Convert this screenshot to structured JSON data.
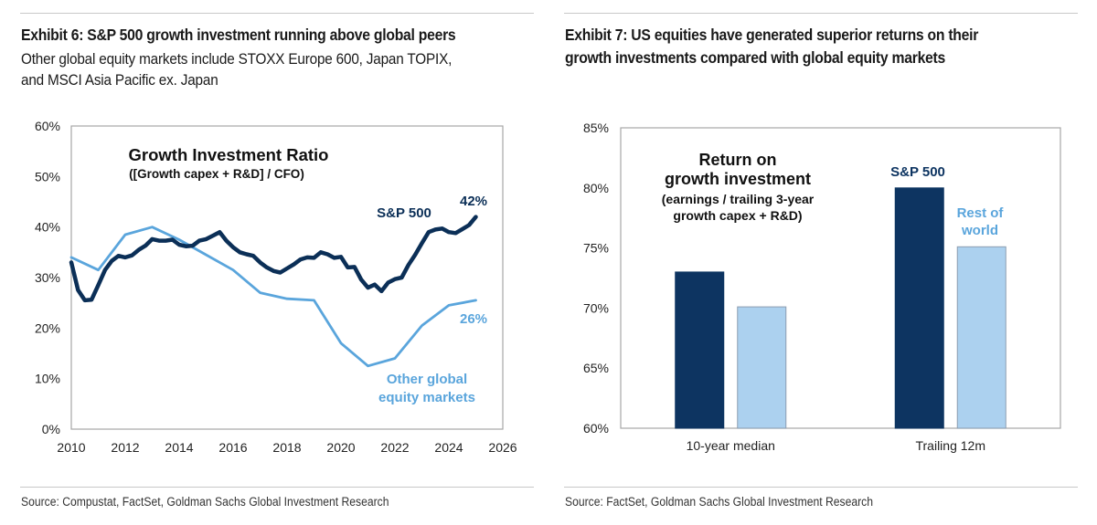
{
  "exhibit6": {
    "title": "Exhibit 6: S&P 500 growth investment running above global peers",
    "subtitle_line1": "Other global equity markets include STOXX Europe 600, Japan TOPIX,",
    "subtitle_line2": "and MSCI Asia Pacific ex. Japan",
    "source": "Source: Compustat, FactSet, Goldman Sachs Global Investment Research"
  },
  "exhibit7": {
    "title_line1": "Exhibit 7: US equities have generated superior returns on their",
    "title_line2": "growth investments compared with global equity markets",
    "source": "Source: FactSet, Goldman Sachs Global Investment Research"
  },
  "colors": {
    "dark_navy": "#0b2f57",
    "light_blue_line": "#5aa5dc",
    "bar_dark": "#0d3461",
    "bar_light": "#acd1ef",
    "axis": "#a6a6a6"
  },
  "chart_data": [
    {
      "type": "line",
      "title": "Growth Investment Ratio",
      "subtitle": "([Growth capex + R&D] / CFO)",
      "xlabel": "",
      "ylabel": "",
      "xlim": [
        2010,
        2026
      ],
      "ylim": [
        0,
        60
      ],
      "xticks": [
        "2010",
        "2012",
        "2014",
        "2016",
        "2018",
        "2020",
        "2022",
        "2024",
        "2026"
      ],
      "yticks": [
        "0%",
        "10%",
        "20%",
        "30%",
        "40%",
        "50%",
        "60%"
      ],
      "grid": false,
      "series": [
        {
          "name": "S&P 500",
          "label": "S&P 500",
          "end_label": "42%",
          "color": "#0b2f57",
          "x": [
            2010.0,
            2010.25,
            2010.5,
            2010.75,
            2011.0,
            2011.25,
            2011.5,
            2011.75,
            2012.0,
            2012.25,
            2012.5,
            2012.75,
            2013.0,
            2013.25,
            2013.5,
            2013.75,
            2014.0,
            2014.25,
            2014.5,
            2014.75,
            2015.0,
            2015.25,
            2015.5,
            2015.75,
            2016.0,
            2016.25,
            2016.5,
            2016.75,
            2017.0,
            2017.25,
            2017.5,
            2017.75,
            2018.0,
            2018.25,
            2018.5,
            2018.75,
            2019.0,
            2019.25,
            2019.5,
            2019.75,
            2020.0,
            2020.25,
            2020.5,
            2020.75,
            2021.0,
            2021.25,
            2021.5,
            2021.75,
            2022.0,
            2022.25,
            2022.5,
            2022.75,
            2023.0,
            2023.25,
            2023.5,
            2023.75,
            2024.0,
            2024.25,
            2024.5,
            2024.75,
            2025.0
          ],
          "y": [
            33,
            27.5,
            25.5,
            25.6,
            28.5,
            31.5,
            33.3,
            34.3,
            34.0,
            34.4,
            35.5,
            36.3,
            37.6,
            37.3,
            37.3,
            37.5,
            36.5,
            36.2,
            36.3,
            37.3,
            37.6,
            38.3,
            39.0,
            37.3,
            36.0,
            35.0,
            34.6,
            34.3,
            33.0,
            32.0,
            31.3,
            31.0,
            31.8,
            32.6,
            33.6,
            34.0,
            33.9,
            35.0,
            34.6,
            33.9,
            34.1,
            32.0,
            32.1,
            29.6,
            28.0,
            28.6,
            27.3,
            29.0,
            29.7,
            30.0,
            32.5,
            34.5,
            36.8,
            39.0,
            39.5,
            39.7,
            39.0,
            38.8,
            39.6,
            40.4,
            42.0
          ]
        },
        {
          "name": "Other global equity markets",
          "label_line1": "Other global",
          "label_line2": "equity markets",
          "end_label": "26%",
          "color": "#5aa5dc",
          "x": [
            2010,
            2011,
            2012,
            2013,
            2014,
            2015,
            2016,
            2017,
            2018,
            2019,
            2020,
            2021,
            2022,
            2023,
            2024,
            2025
          ],
          "y": [
            34,
            31.5,
            38.5,
            40,
            37.5,
            34.5,
            31.5,
            27,
            25.8,
            25.5,
            17,
            12.5,
            14,
            20.5,
            24.5,
            25.5
          ]
        }
      ]
    },
    {
      "type": "bar",
      "title": "Return on growth investment",
      "title_line1": "Return on",
      "title_line2": "growth investment",
      "subtitle_line1": "(earnings / trailing 3-year",
      "subtitle_line2": "growth capex + R&D)",
      "categories": [
        "10-year median",
        "Trailing 12m"
      ],
      "ylim": [
        60,
        85
      ],
      "yticks": [
        "60%",
        "65%",
        "70%",
        "75%",
        "80%",
        "85%"
      ],
      "grid": false,
      "series": [
        {
          "name": "S&P 500",
          "label": "S&P 500",
          "color": "#0d3461",
          "values": [
            73.0,
            80.0
          ]
        },
        {
          "name": "Rest of world",
          "label_line1": "Rest of",
          "label_line2": "world",
          "color": "#acd1ef",
          "values": [
            70.1,
            75.1
          ]
        }
      ]
    }
  ]
}
